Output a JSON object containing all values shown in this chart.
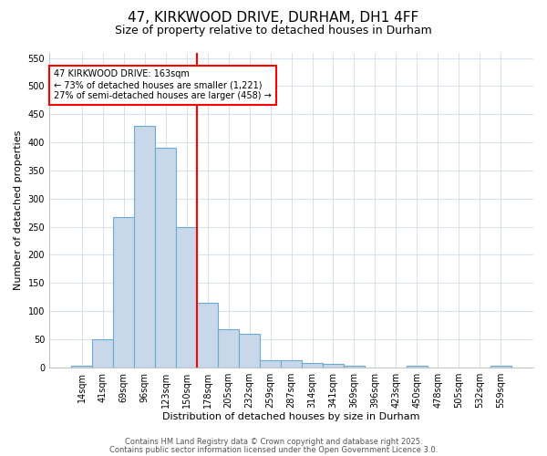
{
  "title1": "47, KIRKWOOD DRIVE, DURHAM, DH1 4FF",
  "title2": "Size of property relative to detached houses in Durham",
  "xlabel": "Distribution of detached houses by size in Durham",
  "ylabel": "Number of detached properties",
  "bar_labels": [
    "14sqm",
    "41sqm",
    "69sqm",
    "96sqm",
    "123sqm",
    "150sqm",
    "178sqm",
    "205sqm",
    "232sqm",
    "259sqm",
    "287sqm",
    "314sqm",
    "341sqm",
    "369sqm",
    "396sqm",
    "423sqm",
    "450sqm",
    "478sqm",
    "505sqm",
    "532sqm",
    "559sqm"
  ],
  "bar_values": [
    3,
    50,
    267,
    430,
    390,
    250,
    115,
    68,
    60,
    13,
    13,
    8,
    6,
    2,
    0,
    0,
    3,
    0,
    0,
    0,
    3
  ],
  "bar_color": "#c8d8ea",
  "bar_edge_color": "#6aaad4",
  "red_line_index": 5.5,
  "ylim": [
    0,
    560
  ],
  "yticks": [
    0,
    50,
    100,
    150,
    200,
    250,
    300,
    350,
    400,
    450,
    500,
    550
  ],
  "annotation_line1": "47 KIRKWOOD DRIVE: 163sqm",
  "annotation_line2": "← 73% of detached houses are smaller (1,221)",
  "annotation_line3": "27% of semi-detached houses are larger (458) →",
  "bg_color": "#ffffff",
  "plot_bg_color": "#ffffff",
  "grid_color": "#d0dcee",
  "footer1": "Contains HM Land Registry data © Crown copyright and database right 2025.",
  "footer2": "Contains public sector information licensed under the Open Government Licence 3.0.",
  "title1_fontsize": 11,
  "title2_fontsize": 9,
  "xlabel_fontsize": 8,
  "ylabel_fontsize": 8,
  "tick_fontsize": 7,
  "footer_fontsize": 6
}
